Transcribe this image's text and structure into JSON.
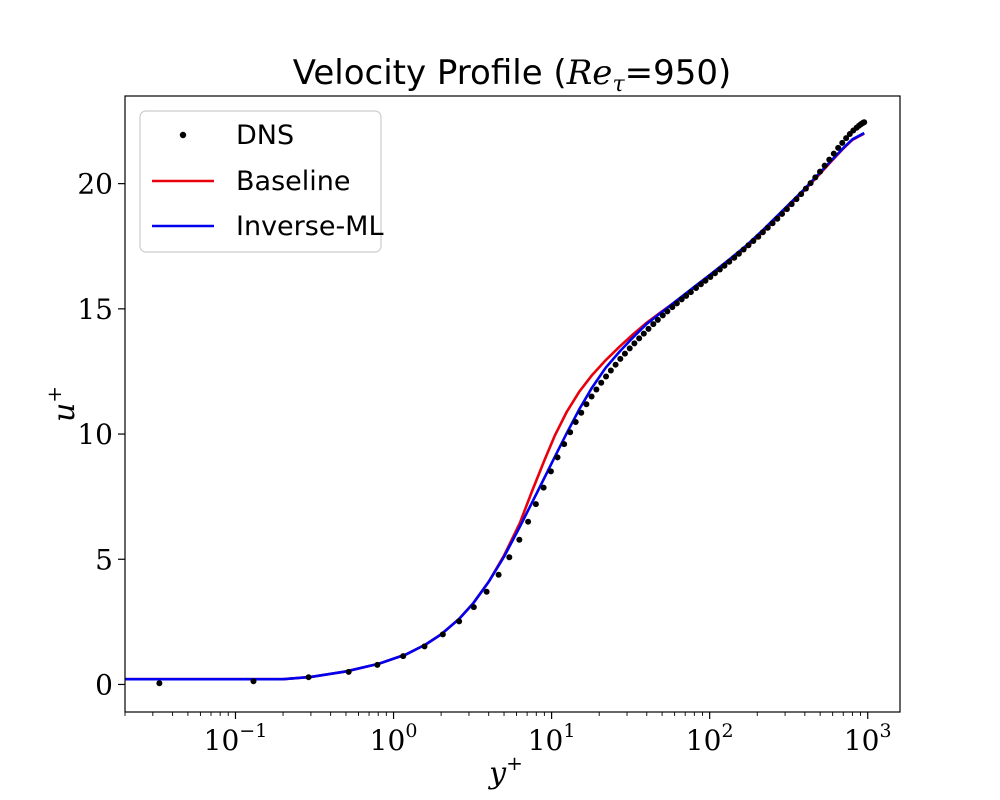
{
  "chart_data": {
    "type": "line",
    "title": "Velocity Profile (Re_τ=950)",
    "title_parts": {
      "prefix": "Velocity Profile (",
      "re": "Re",
      "tau": "τ",
      "suffix": "=950)"
    },
    "xlabel": "y",
    "xlabel_sup": "+",
    "ylabel": "u",
    "ylabel_sup": "+",
    "x_scale": "log",
    "xlim": [
      0.02,
      1600
    ],
    "ylim": [
      -1.1,
      23.5
    ],
    "x_ticks": [
      {
        "value": 0.1,
        "base": "10",
        "exp": "−1"
      },
      {
        "value": 1,
        "base": "10",
        "exp": "0"
      },
      {
        "value": 10,
        "base": "10",
        "exp": "1"
      },
      {
        "value": 100,
        "base": "10",
        "exp": "2"
      },
      {
        "value": 1000,
        "base": "10",
        "exp": "3"
      }
    ],
    "y_ticks": [
      0,
      5,
      10,
      15,
      20
    ],
    "legend_position": "top-left",
    "grid": false,
    "series": [
      {
        "name": "DNS",
        "style": "points",
        "color": "#000000",
        "x": [
          0.033,
          0.13,
          0.29,
          0.52,
          0.79,
          1.15,
          1.57,
          2.05,
          2.6,
          3.22,
          3.88,
          4.62,
          5.4,
          6.25,
          7.1,
          7.95,
          8.9,
          9.9,
          10.9,
          12.0,
          13.1,
          14.2,
          15.4,
          16.6,
          17.9,
          19.2,
          20.6,
          22.1,
          23.7,
          25.4,
          27.2,
          29.1,
          31.2,
          33.4,
          35.8,
          38.3,
          41,
          44,
          47,
          50.5,
          54,
          58,
          62,
          66.5,
          71,
          76,
          82,
          88,
          94,
          101,
          108,
          116,
          124,
          133,
          143,
          153,
          164,
          176,
          189,
          203,
          217,
          233,
          250,
          268,
          287,
          308,
          330,
          354,
          379,
          406,
          435,
          466,
          499,
          534,
          571,
          610,
          650,
          690,
          730,
          770,
          810,
          850,
          880,
          905,
          925,
          940,
          950
        ],
        "y": [
          0.05,
          0.13,
          0.29,
          0.5,
          0.78,
          1.13,
          1.52,
          2.0,
          2.52,
          3.09,
          3.7,
          4.38,
          5.08,
          5.78,
          6.5,
          7.2,
          7.86,
          8.51,
          9.07,
          9.6,
          10.07,
          10.48,
          10.85,
          11.19,
          11.5,
          11.78,
          12.05,
          12.3,
          12.54,
          12.77,
          13.0,
          13.21,
          13.42,
          13.62,
          13.82,
          14.01,
          14.2,
          14.39,
          14.56,
          14.74,
          14.9,
          15.07,
          15.22,
          15.38,
          15.52,
          15.67,
          15.83,
          15.98,
          16.12,
          16.27,
          16.42,
          16.57,
          16.72,
          16.88,
          17.04,
          17.2,
          17.37,
          17.54,
          17.71,
          17.88,
          18.06,
          18.24,
          18.42,
          18.6,
          18.79,
          18.98,
          19.18,
          19.38,
          19.58,
          19.8,
          20.02,
          20.25,
          20.48,
          20.72,
          20.96,
          21.2,
          21.43,
          21.63,
          21.82,
          21.98,
          22.12,
          22.23,
          22.31,
          22.37,
          22.41,
          22.44,
          22.45
        ]
      },
      {
        "name": "Baseline",
        "style": "line",
        "color": "#e8000b",
        "x": [
          0.02,
          0.2,
          0.3,
          0.5,
          0.8,
          1.2,
          1.6,
          2.0,
          2.6,
          3.2,
          4.0,
          5.0,
          6.3,
          7.5,
          9.0,
          10.5,
          12.5,
          15.0,
          18.0,
          22.0,
          27.0,
          33.0,
          40.0,
          50.0,
          63.0,
          80.0,
          100,
          130,
          170,
          220,
          300,
          400,
          500,
          600,
          700,
          800,
          950
        ],
        "y": [
          0.21,
          0.21,
          0.3,
          0.52,
          0.82,
          1.2,
          1.6,
          2.0,
          2.62,
          3.25,
          4.1,
          5.15,
          6.45,
          7.7,
          8.95,
          9.95,
          10.9,
          11.7,
          12.35,
          12.95,
          13.5,
          14.0,
          14.45,
          14.9,
          15.35,
          15.85,
          16.3,
          16.85,
          17.45,
          18.1,
          18.95,
          19.75,
          20.4,
          20.95,
          21.4,
          21.75,
          22.0
        ]
      },
      {
        "name": "Inverse-ML",
        "style": "line",
        "color": "#0000ee",
        "x": [
          0.02,
          0.2,
          0.3,
          0.5,
          0.8,
          1.2,
          1.6,
          2.0,
          2.6,
          3.2,
          4.0,
          5.0,
          6.3,
          7.5,
          9.0,
          10.5,
          12.5,
          15.0,
          18.0,
          22.0,
          27.0,
          33.0,
          40.0,
          50.0,
          63.0,
          80.0,
          100,
          130,
          170,
          220,
          300,
          400,
          500,
          600,
          700,
          800,
          950
        ],
        "y": [
          0.21,
          0.21,
          0.3,
          0.52,
          0.82,
          1.2,
          1.6,
          2.0,
          2.62,
          3.25,
          4.1,
          5.1,
          6.3,
          7.25,
          8.25,
          9.1,
          10.05,
          11.0,
          11.85,
          12.65,
          13.3,
          13.88,
          14.4,
          14.88,
          15.37,
          15.88,
          16.35,
          16.92,
          17.52,
          18.18,
          19.02,
          19.8,
          20.45,
          20.98,
          21.42,
          21.77,
          22.02
        ]
      }
    ]
  }
}
